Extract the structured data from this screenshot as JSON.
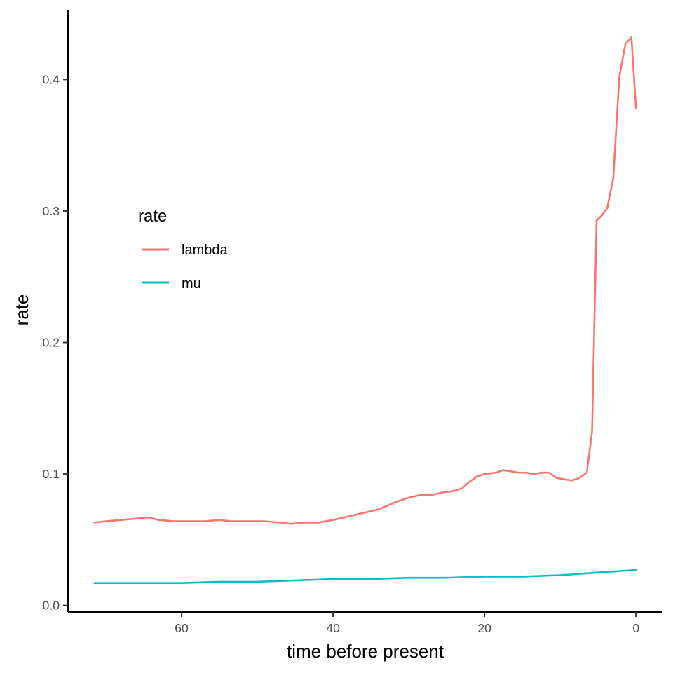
{
  "chart_data": {
    "type": "line",
    "xlabel": "time before present",
    "ylabel": "rate",
    "x_reversed": true,
    "xlim": [
      75,
      -3.5
    ],
    "ylim": [
      -0.005,
      0.453
    ],
    "x_ticks": [
      60,
      40,
      20,
      0
    ],
    "y_ticks": [
      0.0,
      0.1,
      0.2,
      0.3,
      0.4
    ],
    "x_tick_labels": [
      "60",
      "40",
      "20",
      "0"
    ],
    "y_tick_labels": [
      "0.0",
      "0.1",
      "0.2",
      "0.3",
      "0.4"
    ],
    "grid": false,
    "legend": {
      "title": "rate",
      "placement": "top-left"
    },
    "series": [
      {
        "name": "lambda",
        "color": "#F8766D",
        "x": [
          71.5,
          70,
          68,
          66,
          64.5,
          63,
          61,
          59,
          57,
          55,
          53.5,
          51,
          49,
          47,
          45.5,
          44,
          42,
          40,
          38.5,
          37,
          35.5,
          34,
          32,
          30,
          28.5,
          27,
          25.5,
          24,
          23,
          22,
          21,
          20,
          18.5,
          17.5,
          16.5,
          15.5,
          14.5,
          13.5,
          12.5,
          11.5,
          10.5,
          9.5,
          8.5,
          7.5,
          6.5,
          5.8,
          5.2,
          4.6,
          3.8,
          3.0,
          2.2,
          1.4,
          0.6,
          0.0
        ],
        "y": [
          0.063,
          0.064,
          0.065,
          0.066,
          0.067,
          0.065,
          0.064,
          0.064,
          0.064,
          0.065,
          0.064,
          0.064,
          0.064,
          0.063,
          0.062,
          0.063,
          0.063,
          0.065,
          0.067,
          0.069,
          0.071,
          0.073,
          0.078,
          0.082,
          0.084,
          0.084,
          0.086,
          0.087,
          0.089,
          0.094,
          0.098,
          0.1,
          0.101,
          0.103,
          0.102,
          0.101,
          0.101,
          0.1,
          0.101,
          0.101,
          0.097,
          0.096,
          0.095,
          0.097,
          0.101,
          0.132,
          0.293,
          0.296,
          0.302,
          0.325,
          0.402,
          0.427,
          0.432,
          0.378
        ]
      },
      {
        "name": "mu",
        "color": "#00BFC4",
        "x": [
          71.5,
          65,
          60,
          55,
          50,
          45,
          40,
          35,
          30,
          25,
          20,
          15,
          10,
          5,
          0
        ],
        "y": [
          0.017,
          0.017,
          0.017,
          0.018,
          0.018,
          0.019,
          0.02,
          0.02,
          0.021,
          0.021,
          0.022,
          0.022,
          0.023,
          0.025,
          0.027
        ]
      }
    ]
  }
}
